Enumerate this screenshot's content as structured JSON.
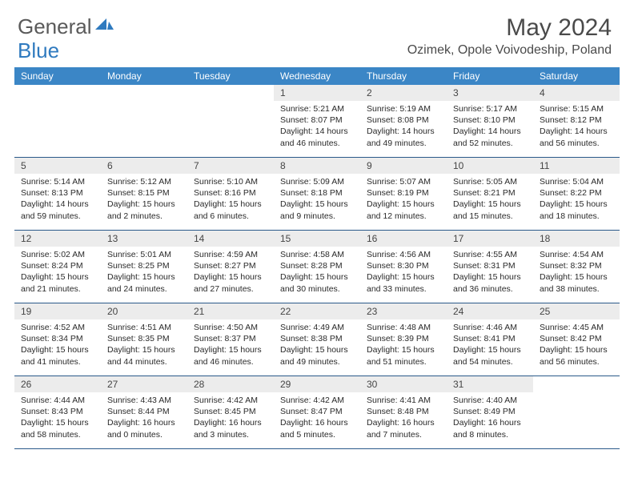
{
  "brand": {
    "part1": "General",
    "part2": "Blue"
  },
  "title": "May 2024",
  "location": "Ozimek, Opole Voivodeship, Poland",
  "colors": {
    "header_bg": "#3b86c6",
    "header_text": "#ffffff",
    "daynum_bg": "#ececec",
    "text": "#2a2a2a",
    "rule": "#2a5a8a",
    "logo_gray": "#5a5a5a",
    "logo_blue": "#2f7abf"
  },
  "dayNames": [
    "Sunday",
    "Monday",
    "Tuesday",
    "Wednesday",
    "Thursday",
    "Friday",
    "Saturday"
  ],
  "weeks": [
    [
      {
        "n": "",
        "sr": "",
        "ss": "",
        "dl": ""
      },
      {
        "n": "",
        "sr": "",
        "ss": "",
        "dl": ""
      },
      {
        "n": "",
        "sr": "",
        "ss": "",
        "dl": ""
      },
      {
        "n": "1",
        "sr": "5:21 AM",
        "ss": "8:07 PM",
        "dl": "14 hours and 46 minutes."
      },
      {
        "n": "2",
        "sr": "5:19 AM",
        "ss": "8:08 PM",
        "dl": "14 hours and 49 minutes."
      },
      {
        "n": "3",
        "sr": "5:17 AM",
        "ss": "8:10 PM",
        "dl": "14 hours and 52 minutes."
      },
      {
        "n": "4",
        "sr": "5:15 AM",
        "ss": "8:12 PM",
        "dl": "14 hours and 56 minutes."
      }
    ],
    [
      {
        "n": "5",
        "sr": "5:14 AM",
        "ss": "8:13 PM",
        "dl": "14 hours and 59 minutes."
      },
      {
        "n": "6",
        "sr": "5:12 AM",
        "ss": "8:15 PM",
        "dl": "15 hours and 2 minutes."
      },
      {
        "n": "7",
        "sr": "5:10 AM",
        "ss": "8:16 PM",
        "dl": "15 hours and 6 minutes."
      },
      {
        "n": "8",
        "sr": "5:09 AM",
        "ss": "8:18 PM",
        "dl": "15 hours and 9 minutes."
      },
      {
        "n": "9",
        "sr": "5:07 AM",
        "ss": "8:19 PM",
        "dl": "15 hours and 12 minutes."
      },
      {
        "n": "10",
        "sr": "5:05 AM",
        "ss": "8:21 PM",
        "dl": "15 hours and 15 minutes."
      },
      {
        "n": "11",
        "sr": "5:04 AM",
        "ss": "8:22 PM",
        "dl": "15 hours and 18 minutes."
      }
    ],
    [
      {
        "n": "12",
        "sr": "5:02 AM",
        "ss": "8:24 PM",
        "dl": "15 hours and 21 minutes."
      },
      {
        "n": "13",
        "sr": "5:01 AM",
        "ss": "8:25 PM",
        "dl": "15 hours and 24 minutes."
      },
      {
        "n": "14",
        "sr": "4:59 AM",
        "ss": "8:27 PM",
        "dl": "15 hours and 27 minutes."
      },
      {
        "n": "15",
        "sr": "4:58 AM",
        "ss": "8:28 PM",
        "dl": "15 hours and 30 minutes."
      },
      {
        "n": "16",
        "sr": "4:56 AM",
        "ss": "8:30 PM",
        "dl": "15 hours and 33 minutes."
      },
      {
        "n": "17",
        "sr": "4:55 AM",
        "ss": "8:31 PM",
        "dl": "15 hours and 36 minutes."
      },
      {
        "n": "18",
        "sr": "4:54 AM",
        "ss": "8:32 PM",
        "dl": "15 hours and 38 minutes."
      }
    ],
    [
      {
        "n": "19",
        "sr": "4:52 AM",
        "ss": "8:34 PM",
        "dl": "15 hours and 41 minutes."
      },
      {
        "n": "20",
        "sr": "4:51 AM",
        "ss": "8:35 PM",
        "dl": "15 hours and 44 minutes."
      },
      {
        "n": "21",
        "sr": "4:50 AM",
        "ss": "8:37 PM",
        "dl": "15 hours and 46 minutes."
      },
      {
        "n": "22",
        "sr": "4:49 AM",
        "ss": "8:38 PM",
        "dl": "15 hours and 49 minutes."
      },
      {
        "n": "23",
        "sr": "4:48 AM",
        "ss": "8:39 PM",
        "dl": "15 hours and 51 minutes."
      },
      {
        "n": "24",
        "sr": "4:46 AM",
        "ss": "8:41 PM",
        "dl": "15 hours and 54 minutes."
      },
      {
        "n": "25",
        "sr": "4:45 AM",
        "ss": "8:42 PM",
        "dl": "15 hours and 56 minutes."
      }
    ],
    [
      {
        "n": "26",
        "sr": "4:44 AM",
        "ss": "8:43 PM",
        "dl": "15 hours and 58 minutes."
      },
      {
        "n": "27",
        "sr": "4:43 AM",
        "ss": "8:44 PM",
        "dl": "16 hours and 0 minutes."
      },
      {
        "n": "28",
        "sr": "4:42 AM",
        "ss": "8:45 PM",
        "dl": "16 hours and 3 minutes."
      },
      {
        "n": "29",
        "sr": "4:42 AM",
        "ss": "8:47 PM",
        "dl": "16 hours and 5 minutes."
      },
      {
        "n": "30",
        "sr": "4:41 AM",
        "ss": "8:48 PM",
        "dl": "16 hours and 7 minutes."
      },
      {
        "n": "31",
        "sr": "4:40 AM",
        "ss": "8:49 PM",
        "dl": "16 hours and 8 minutes."
      },
      {
        "n": "",
        "sr": "",
        "ss": "",
        "dl": ""
      }
    ]
  ],
  "labels": {
    "sunrise": "Sunrise: ",
    "sunset": "Sunset: ",
    "daylight": "Daylight: "
  }
}
